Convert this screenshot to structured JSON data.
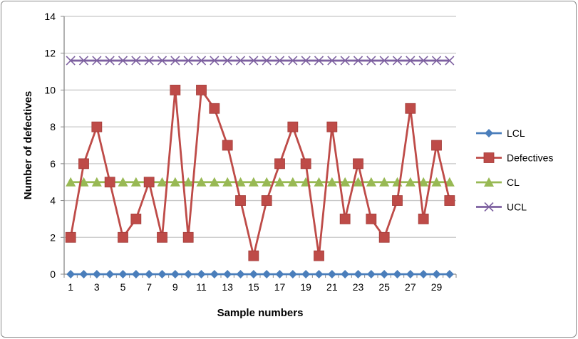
{
  "chart_data": {
    "type": "line",
    "title": "",
    "xlabel": "Sample numbers",
    "ylabel": "Number of defectives",
    "ylim": [
      0,
      14
    ],
    "yticks": [
      0,
      2,
      4,
      6,
      8,
      10,
      12,
      14
    ],
    "x": [
      1,
      2,
      3,
      4,
      5,
      6,
      7,
      8,
      9,
      10,
      11,
      12,
      13,
      14,
      15,
      16,
      17,
      18,
      19,
      20,
      21,
      22,
      23,
      24,
      25,
      26,
      27,
      28,
      29,
      30
    ],
    "xtick_labels": [
      "1",
      "3",
      "5",
      "7",
      "9",
      "11",
      "13",
      "15",
      "17",
      "19",
      "21",
      "23",
      "25",
      "27",
      "29"
    ],
    "grid": "horizontal",
    "legend_position": "right",
    "series": [
      {
        "name": "LCL",
        "color": "#4a7ebb",
        "marker": "diamond",
        "values": [
          0,
          0,
          0,
          0,
          0,
          0,
          0,
          0,
          0,
          0,
          0,
          0,
          0,
          0,
          0,
          0,
          0,
          0,
          0,
          0,
          0,
          0,
          0,
          0,
          0,
          0,
          0,
          0,
          0,
          0
        ]
      },
      {
        "name": "Defectives",
        "color": "#be4b48",
        "marker": "square",
        "values": [
          2,
          6,
          8,
          5,
          2,
          3,
          5,
          2,
          10,
          2,
          10,
          9,
          7,
          4,
          1,
          4,
          6,
          8,
          6,
          1,
          8,
          3,
          6,
          3,
          2,
          4,
          9,
          3,
          7,
          4
        ]
      },
      {
        "name": "CL",
        "color": "#98b954",
        "marker": "triangle",
        "values": [
          5,
          5,
          5,
          5,
          5,
          5,
          5,
          5,
          5,
          5,
          5,
          5,
          5,
          5,
          5,
          5,
          5,
          5,
          5,
          5,
          5,
          5,
          5,
          5,
          5,
          5,
          5,
          5,
          5,
          5
        ]
      },
      {
        "name": "UCL",
        "color": "#7d60a0",
        "marker": "x",
        "values": [
          11.6,
          11.6,
          11.6,
          11.6,
          11.6,
          11.6,
          11.6,
          11.6,
          11.6,
          11.6,
          11.6,
          11.6,
          11.6,
          11.6,
          11.6,
          11.6,
          11.6,
          11.6,
          11.6,
          11.6,
          11.6,
          11.6,
          11.6,
          11.6,
          11.6,
          11.6,
          11.6,
          11.6,
          11.6,
          11.6
        ]
      }
    ]
  }
}
